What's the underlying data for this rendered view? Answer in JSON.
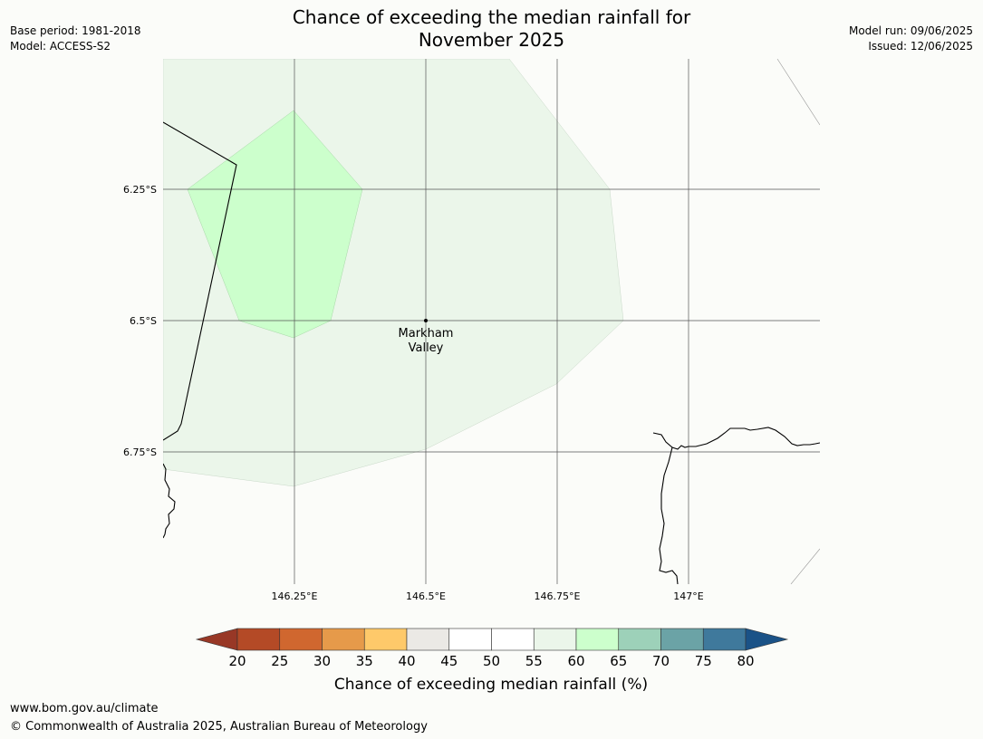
{
  "header": {
    "title_line1": "Chance of exceeding the median rainfall for",
    "title_line2": "November 2025",
    "base_period": "Base period: 1981-2018",
    "model": "Model: ACCESS-S2",
    "model_run": "Model run: 09/06/2025",
    "issued": "Issued: 12/06/2025"
  },
  "map": {
    "lat_labels": [
      "6.25°S",
      "6.5°S",
      "6.75°S"
    ],
    "lon_labels": [
      "146.25°E",
      "146.5°E",
      "146.75°E",
      "147°E"
    ],
    "place_label_line1": "Markham",
    "place_label_line2": "Valley",
    "colors": {
      "zone_55_60": "#ebf6ea",
      "zone_60_65": "#ccffcc",
      "coastline": "#000000",
      "grid": "#555555"
    }
  },
  "legend": {
    "title": "Chance of exceeding median rainfall (%)",
    "ticks": [
      "20",
      "25",
      "30",
      "35",
      "40",
      "45",
      "50",
      "55",
      "60",
      "65",
      "70",
      "75",
      "80"
    ],
    "colors": [
      "#983826",
      "#b44a26",
      "#d0672f",
      "#e69a4a",
      "#fec96a",
      "#ebe9e5",
      "#ffffff",
      "#ffffff",
      "#ebf6ea",
      "#ccffcc",
      "#9dd1b9",
      "#6ba3a6",
      "#3f799c",
      "#1a5287"
    ]
  },
  "footer": {
    "url": "www.bom.gov.au/climate",
    "copyright": "© Commonwealth of Australia 2025, Australian Bureau of Meteorology"
  }
}
